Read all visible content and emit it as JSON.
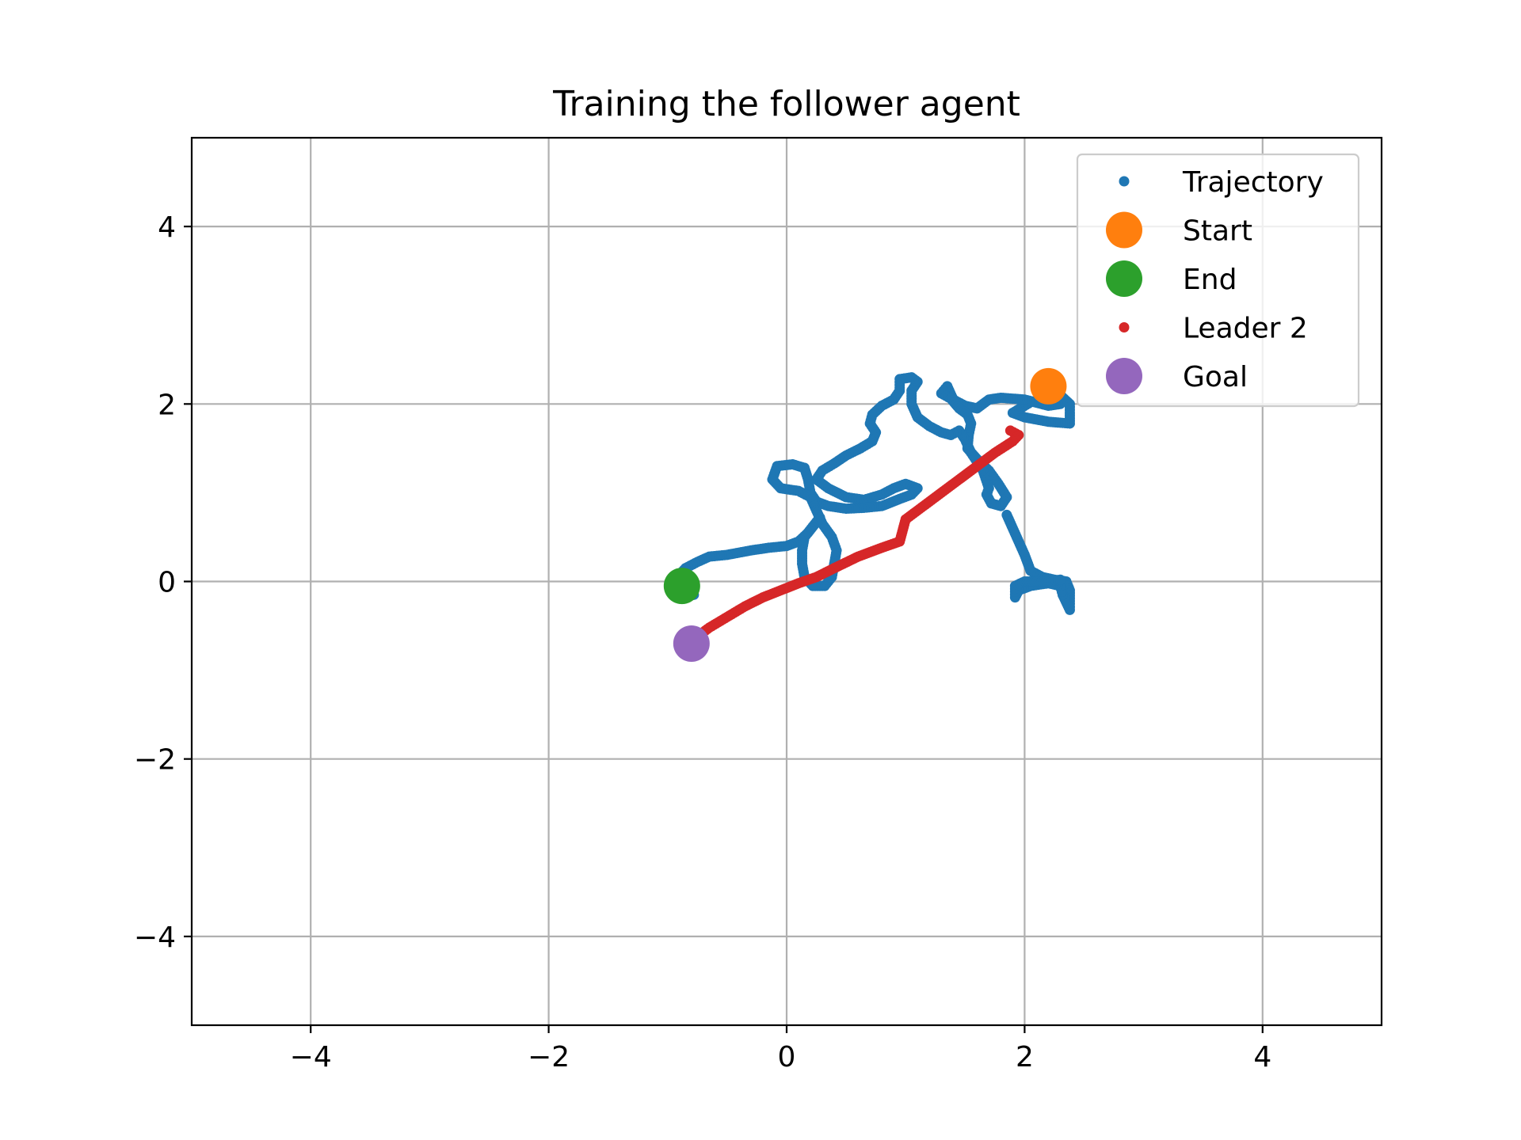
{
  "chart_data": {
    "type": "scatter",
    "title": "Training the follower agent",
    "xlabel": "",
    "ylabel": "",
    "xlim": [
      -5,
      5
    ],
    "ylim": [
      -5,
      5
    ],
    "xticks": [
      -4,
      -2,
      0,
      2,
      4
    ],
    "yticks": [
      -4,
      -2,
      0,
      2,
      4
    ],
    "xtick_labels": [
      "−4",
      "−2",
      "0",
      "2",
      "4"
    ],
    "ytick_labels": [
      "−4",
      "−2",
      "0",
      "2",
      "4"
    ],
    "grid": true,
    "legend_position": "top-right",
    "series": [
      {
        "name": "Trajectory",
        "color": "#1f77b4",
        "marker": "small-dot",
        "points": [
          [
            2.2,
            2.2
          ],
          [
            2.3,
            2.1
          ],
          [
            2.38,
            2.0
          ],
          [
            2.38,
            1.9
          ],
          [
            2.38,
            1.78
          ],
          [
            2.2,
            1.8
          ],
          [
            2.0,
            1.85
          ],
          [
            1.9,
            1.9
          ],
          [
            2.05,
            2.02
          ],
          [
            2.2,
            2.05
          ],
          [
            2.3,
            2.0
          ],
          [
            2.2,
            1.98
          ],
          [
            2.0,
            2.05
          ],
          [
            1.8,
            2.07
          ],
          [
            1.7,
            2.05
          ],
          [
            1.6,
            1.95
          ],
          [
            1.5,
            1.98
          ],
          [
            1.4,
            2.05
          ],
          [
            1.35,
            2.2
          ],
          [
            1.3,
            2.12
          ],
          [
            1.38,
            2.06
          ],
          [
            1.45,
            1.95
          ],
          [
            1.52,
            1.88
          ],
          [
            1.55,
            1.78
          ],
          [
            1.53,
            1.65
          ],
          [
            1.52,
            1.5
          ],
          [
            1.6,
            1.38
          ],
          [
            1.7,
            1.25
          ],
          [
            1.78,
            1.1
          ],
          [
            1.85,
            0.95
          ],
          [
            1.8,
            0.85
          ],
          [
            1.72,
            0.88
          ],
          [
            1.68,
            0.98
          ],
          [
            1.7,
            1.05
          ],
          [
            1.65,
            1.25
          ],
          [
            1.55,
            1.45
          ],
          [
            1.5,
            1.6
          ],
          [
            1.45,
            1.7
          ],
          [
            1.38,
            1.65
          ],
          [
            1.3,
            1.68
          ],
          [
            1.2,
            1.75
          ],
          [
            1.1,
            1.85
          ],
          [
            1.05,
            2.0
          ],
          [
            1.05,
            2.15
          ],
          [
            1.1,
            2.25
          ],
          [
            1.05,
            2.3
          ],
          [
            0.95,
            2.28
          ],
          [
            0.95,
            2.15
          ],
          [
            0.9,
            2.05
          ],
          [
            0.8,
            1.98
          ],
          [
            0.72,
            1.88
          ],
          [
            0.7,
            1.78
          ],
          [
            0.75,
            1.68
          ],
          [
            0.72,
            1.58
          ],
          [
            0.62,
            1.5
          ],
          [
            0.5,
            1.42
          ],
          [
            0.4,
            1.33
          ],
          [
            0.3,
            1.25
          ],
          [
            0.25,
            1.15
          ],
          [
            0.35,
            1.05
          ],
          [
            0.5,
            0.95
          ],
          [
            0.65,
            0.92
          ],
          [
            0.8,
            0.98
          ],
          [
            0.9,
            1.05
          ],
          [
            1.0,
            1.1
          ],
          [
            1.1,
            1.05
          ],
          [
            1.05,
            0.98
          ],
          [
            0.95,
            0.93
          ],
          [
            0.8,
            0.85
          ],
          [
            0.65,
            0.83
          ],
          [
            0.5,
            0.82
          ],
          [
            0.35,
            0.85
          ],
          [
            0.25,
            0.9
          ],
          [
            0.2,
            1.0
          ],
          [
            0.18,
            1.15
          ],
          [
            0.15,
            1.28
          ],
          [
            0.05,
            1.32
          ],
          [
            -0.08,
            1.3
          ],
          [
            -0.12,
            1.15
          ],
          [
            -0.05,
            1.05
          ],
          [
            0.1,
            1.02
          ],
          [
            0.2,
            0.95
          ],
          [
            0.25,
            0.8
          ],
          [
            0.3,
            0.65
          ],
          [
            0.38,
            0.5
          ],
          [
            0.42,
            0.35
          ],
          [
            0.4,
            0.2
          ],
          [
            0.38,
            0.05
          ],
          [
            0.32,
            -0.05
          ],
          [
            0.22,
            -0.05
          ],
          [
            0.15,
            0.05
          ],
          [
            0.13,
            0.2
          ],
          [
            0.13,
            0.35
          ],
          [
            0.15,
            0.5
          ],
          [
            0.22,
            0.62
          ],
          [
            0.28,
            0.72
          ],
          [
            0.18,
            0.55
          ],
          [
            0.1,
            0.45
          ],
          [
            0.0,
            0.4
          ],
          [
            -0.15,
            0.38
          ],
          [
            -0.3,
            0.35
          ],
          [
            -0.5,
            0.3
          ],
          [
            -0.65,
            0.28
          ],
          [
            -0.75,
            0.22
          ],
          [
            -0.85,
            0.15
          ],
          [
            -0.92,
            0.05
          ],
          [
            -0.9,
            -0.05
          ],
          [
            -0.85,
            -0.12
          ],
          [
            -0.78,
            -0.15
          ],
          [
            -0.8,
            -0.05
          ],
          [
            -0.88,
            -0.02
          ],
          [
            1.85,
            0.75
          ],
          [
            1.9,
            0.6
          ],
          [
            1.95,
            0.45
          ],
          [
            2.0,
            0.3
          ],
          [
            2.05,
            0.12
          ],
          [
            2.15,
            0.05
          ],
          [
            2.25,
            0.02
          ],
          [
            2.35,
            0.0
          ],
          [
            2.38,
            -0.1
          ],
          [
            2.38,
            -0.25
          ],
          [
            2.38,
            -0.32
          ],
          [
            2.32,
            -0.15
          ],
          [
            2.3,
            -0.05
          ],
          [
            2.2,
            -0.02
          ],
          [
            2.05,
            -0.05
          ],
          [
            1.95,
            -0.1
          ],
          [
            1.92,
            -0.18
          ],
          [
            1.92,
            -0.05
          ],
          [
            2.0,
            0.0
          ],
          [
            2.2,
            0.0
          ],
          [
            2.3,
            0.02
          ]
        ]
      },
      {
        "name": "Start",
        "color": "#ff7f0e",
        "marker": "large-dot",
        "points": [
          [
            2.2,
            2.2
          ]
        ]
      },
      {
        "name": "End",
        "color": "#2ca02c",
        "marker": "large-dot",
        "points": [
          [
            -0.88,
            -0.05
          ]
        ]
      },
      {
        "name": "Leader 2",
        "color": "#d62728",
        "marker": "small-dot",
        "points": [
          [
            1.88,
            1.7
          ],
          [
            1.95,
            1.65
          ],
          [
            1.9,
            1.58
          ],
          [
            1.75,
            1.45
          ],
          [
            1.6,
            1.3
          ],
          [
            1.45,
            1.15
          ],
          [
            1.3,
            1.0
          ],
          [
            1.15,
            0.85
          ],
          [
            1.0,
            0.7
          ],
          [
            0.95,
            0.45
          ],
          [
            0.8,
            0.38
          ],
          [
            0.6,
            0.28
          ],
          [
            0.4,
            0.15
          ],
          [
            0.25,
            0.05
          ],
          [
            0.1,
            -0.02
          ],
          [
            -0.05,
            -0.1
          ],
          [
            -0.2,
            -0.18
          ],
          [
            -0.35,
            -0.28
          ],
          [
            -0.5,
            -0.4
          ],
          [
            -0.65,
            -0.52
          ],
          [
            -0.75,
            -0.62
          ],
          [
            -0.82,
            -0.68
          ]
        ]
      },
      {
        "name": "Goal",
        "color": "#9467bd",
        "marker": "large-dot",
        "points": [
          [
            -0.8,
            -0.7
          ]
        ]
      }
    ]
  }
}
